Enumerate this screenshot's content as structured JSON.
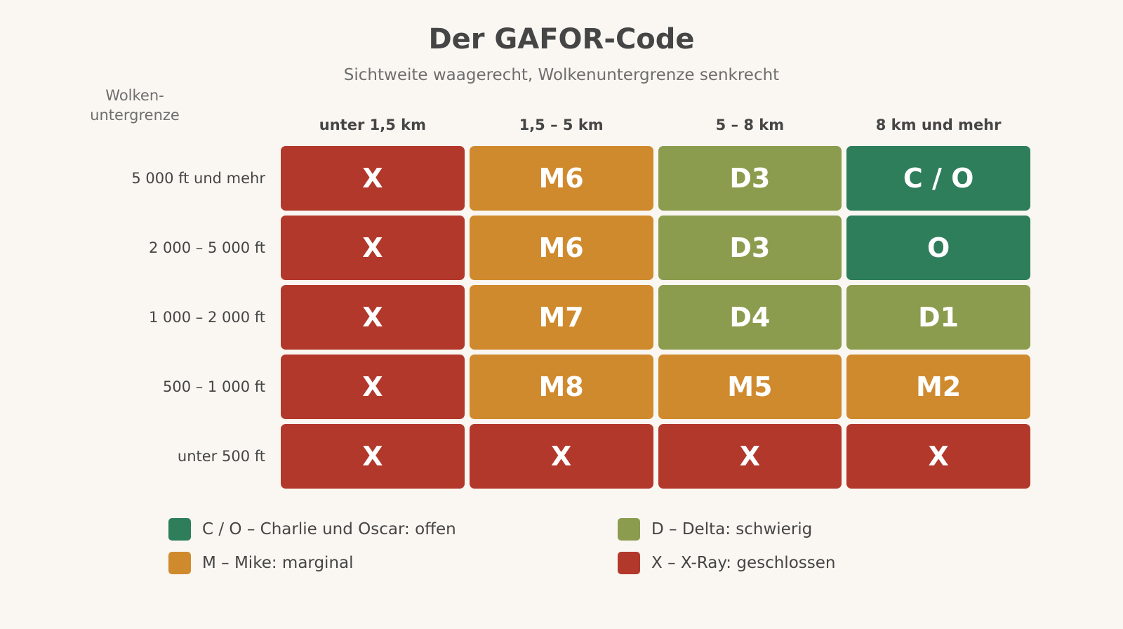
{
  "title": "Der GAFOR-Code",
  "subtitle": "Sichtweite waagerecht, Wolkenuntergrenze senkrecht",
  "y_axis_title": "Wolken-\nuntergrenze",
  "columns": [
    "unter 1,5 km",
    "1,5 – 5 km",
    "5 – 8 km",
    "8 km und mehr"
  ],
  "rows": [
    {
      "label": "5 000 ft und mehr",
      "cells": [
        {
          "code": "X",
          "category": "X"
        },
        {
          "code": "M6",
          "category": "M"
        },
        {
          "code": "D3",
          "category": "D"
        },
        {
          "code": "C / O",
          "category": "CO"
        }
      ]
    },
    {
      "label": "2 000 – 5 000 ft",
      "cells": [
        {
          "code": "X",
          "category": "X"
        },
        {
          "code": "M6",
          "category": "M"
        },
        {
          "code": "D3",
          "category": "D"
        },
        {
          "code": "O",
          "category": "CO"
        }
      ]
    },
    {
      "label": "1 000 – 2 000 ft",
      "cells": [
        {
          "code": "X",
          "category": "X"
        },
        {
          "code": "M7",
          "category": "M"
        },
        {
          "code": "D4",
          "category": "D"
        },
        {
          "code": "D1",
          "category": "D"
        }
      ]
    },
    {
      "label": "500 – 1 000 ft",
      "cells": [
        {
          "code": "X",
          "category": "X"
        },
        {
          "code": "M8",
          "category": "M"
        },
        {
          "code": "M5",
          "category": "M"
        },
        {
          "code": "M2",
          "category": "M"
        }
      ]
    },
    {
      "label": "unter 500 ft",
      "cells": [
        {
          "code": "X",
          "category": "X"
        },
        {
          "code": "X",
          "category": "X"
        },
        {
          "code": "X",
          "category": "X"
        },
        {
          "code": "X",
          "category": "X"
        }
      ]
    }
  ],
  "colors": {
    "CO": "#2e7d5b",
    "D": "#8c9c4e",
    "M": "#d08a2e",
    "X": "#b3382c"
  },
  "legend": [
    {
      "category": "CO",
      "label": "C / O – Charlie und Oscar: offen"
    },
    {
      "category": "D",
      "label": "D – Delta: schwierig"
    },
    {
      "category": "M",
      "label": "M – Mike: marginal"
    },
    {
      "category": "X",
      "label": "X – X-Ray: geschlossen"
    }
  ]
}
